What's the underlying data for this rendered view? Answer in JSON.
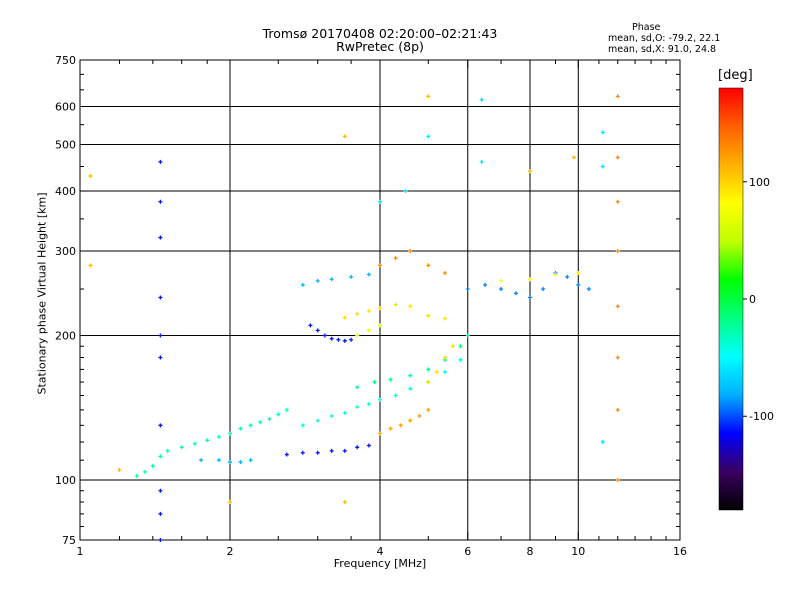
{
  "chart_data": {
    "type": "scatter",
    "title": "Tromsø 20170408 02:20:00–02:21:43",
    "subtitle": "RwPretec (8p)",
    "xlabel": "Frequency [MHz]",
    "ylabel": "Stationary phase Virtual Height [km]",
    "x_scale": "log",
    "y_scale": "log",
    "xlim": [
      1,
      16
    ],
    "ylim": [
      75,
      750
    ],
    "x_ticks": [
      1,
      2,
      4,
      6,
      8,
      10,
      16
    ],
    "y_ticks": [
      75,
      100,
      200,
      300,
      400,
      500,
      600,
      750
    ],
    "x_major_grid": [
      2,
      4,
      6,
      8,
      10
    ],
    "y_major_grid": [
      100,
      200,
      300,
      400,
      500,
      600
    ],
    "phase_box": {
      "title": "Phase",
      "o_line": "mean, sd,O: -79.2, 22.1",
      "x_line": "mean, sd,X:  91.0, 24.8"
    },
    "colorbar": {
      "unit": "[deg]",
      "range": [
        -180,
        180
      ],
      "ticks": [
        100,
        0,
        -100
      ],
      "colors": [
        "#000000",
        "#3a0060",
        "#0000ff",
        "#00b0ff",
        "#00ffff",
        "#00ff80",
        "#00ff00",
        "#c0ff00",
        "#ffff00",
        "#ffb000",
        "#ff6000",
        "#ff0000"
      ]
    },
    "series": [
      {
        "values": [
          [
            1.3,
            102
          ],
          [
            1.35,
            104
          ],
          [
            1.4,
            107
          ],
          [
            1.45,
            112
          ],
          [
            1.5,
            115
          ],
          [
            1.6,
            117
          ],
          [
            1.7,
            119
          ],
          [
            1.8,
            121
          ],
          [
            1.9,
            123
          ],
          [
            2.0,
            125
          ],
          [
            2.1,
            128
          ],
          [
            2.2,
            130
          ],
          [
            2.3,
            132
          ],
          [
            2.4,
            134
          ],
          [
            2.5,
            137
          ],
          [
            2.6,
            140
          ]
        ],
        "color_phase": -30
      },
      {
        "values": [
          [
            2.6,
            113
          ],
          [
            2.8,
            114
          ],
          [
            3.0,
            114
          ],
          [
            3.2,
            115
          ],
          [
            3.4,
            115
          ],
          [
            3.6,
            117
          ],
          [
            3.8,
            118
          ]
        ],
        "color_phase": -110
      },
      {
        "values": [
          [
            1.75,
            110
          ],
          [
            1.9,
            110
          ],
          [
            2.0,
            109
          ],
          [
            2.1,
            109
          ],
          [
            2.2,
            110
          ]
        ],
        "color_phase": -80
      },
      {
        "values": [
          [
            2.8,
            130
          ],
          [
            3.0,
            133
          ],
          [
            3.2,
            136
          ],
          [
            3.4,
            138
          ],
          [
            3.6,
            142
          ],
          [
            3.8,
            144
          ],
          [
            4.0,
            147
          ],
          [
            4.3,
            150
          ],
          [
            4.6,
            155
          ],
          [
            5.0,
            160
          ],
          [
            5.4,
            168
          ],
          [
            5.8,
            178
          ]
        ],
        "color_phase": -40
      },
      {
        "values": [
          [
            3.6,
            156
          ],
          [
            3.9,
            160
          ],
          [
            4.2,
            162
          ],
          [
            4.6,
            165
          ],
          [
            5.0,
            170
          ],
          [
            5.4,
            178
          ],
          [
            5.8,
            190
          ],
          [
            6.0,
            200
          ]
        ],
        "color_phase": -20
      },
      {
        "values": [
          [
            2.9,
            210
          ],
          [
            3.0,
            205
          ],
          [
            3.1,
            200
          ],
          [
            3.2,
            197
          ],
          [
            3.3,
            196
          ],
          [
            3.4,
            195
          ],
          [
            3.5,
            196
          ]
        ],
        "color_phase": -110
      },
      {
        "values": [
          [
            2.8,
            255
          ],
          [
            3.0,
            260
          ],
          [
            3.2,
            262
          ],
          [
            3.5,
            265
          ],
          [
            3.8,
            268
          ]
        ],
        "color_phase": -80
      },
      {
        "values": [
          [
            3.4,
            218
          ],
          [
            3.6,
            222
          ],
          [
            3.8,
            225
          ],
          [
            4.0,
            228
          ],
          [
            4.3,
            232
          ],
          [
            4.6,
            230
          ],
          [
            5.0,
            220
          ],
          [
            5.4,
            217
          ]
        ],
        "color_phase": 95
      },
      {
        "values": [
          [
            3.6,
            200
          ],
          [
            3.8,
            205
          ],
          [
            4.0,
            210
          ]
        ],
        "color_phase": 70
      },
      {
        "values": [
          [
            4.0,
            125
          ],
          [
            4.2,
            128
          ],
          [
            4.4,
            130
          ],
          [
            4.6,
            133
          ],
          [
            4.8,
            136
          ],
          [
            5.0,
            140
          ]
        ],
        "color_phase": 120
      },
      {
        "values": [
          [
            5.0,
            160
          ],
          [
            5.2,
            168
          ],
          [
            5.4,
            180
          ],
          [
            5.6,
            190
          ]
        ],
        "color_phase": 95
      },
      {
        "values": [
          [
            4.0,
            280
          ],
          [
            4.3,
            290
          ],
          [
            4.6,
            300
          ],
          [
            5.0,
            280
          ],
          [
            5.4,
            270
          ]
        ],
        "color_phase": 130
      },
      {
        "values": [
          [
            6.0,
            250
          ],
          [
            6.5,
            255
          ],
          [
            7.0,
            250
          ],
          [
            7.5,
            245
          ],
          [
            8.0,
            240
          ],
          [
            8.5,
            250
          ],
          [
            9.0,
            270
          ],
          [
            9.5,
            265
          ],
          [
            10.0,
            255
          ],
          [
            10.5,
            250
          ]
        ],
        "color_phase": -90
      },
      {
        "values": [
          [
            7.0,
            260
          ],
          [
            8.0,
            262
          ],
          [
            9.0,
            268
          ],
          [
            10.0,
            270
          ]
        ],
        "color_phase": 80
      },
      {
        "values": [
          [
            1.45,
            75
          ],
          [
            1.45,
            85
          ],
          [
            1.45,
            95
          ],
          [
            1.45,
            130
          ],
          [
            1.45,
            180
          ],
          [
            1.45,
            200
          ],
          [
            1.45,
            240
          ],
          [
            1.45,
            320
          ],
          [
            1.45,
            380
          ],
          [
            1.45,
            460
          ]
        ],
        "color_phase": -110
      },
      {
        "values": [
          [
            12.0,
            100
          ],
          [
            12.0,
            140
          ],
          [
            12.0,
            180
          ],
          [
            12.0,
            230
          ],
          [
            12.0,
            300
          ],
          [
            12.0,
            380
          ],
          [
            12.0,
            470
          ],
          [
            12.0,
            630
          ]
        ],
        "color_phase": 130
      },
      {
        "values": [
          [
            11.2,
            120
          ],
          [
            11.2,
            450
          ],
          [
            11.2,
            530
          ],
          [
            6.4,
            620
          ],
          [
            6.4,
            460
          ],
          [
            5.0,
            520
          ],
          [
            4.5,
            400
          ],
          [
            4.0,
            380
          ]
        ],
        "color_phase": -60
      },
      {
        "values": [
          [
            1.05,
            430
          ],
          [
            1.05,
            280
          ],
          [
            2.0,
            90
          ],
          [
            3.4,
            90
          ],
          [
            5.0,
            630
          ],
          [
            3.4,
            520
          ],
          [
            9.8,
            470
          ],
          [
            8.0,
            440
          ],
          [
            1.2,
            105
          ]
        ],
        "color_phase": 110
      }
    ]
  }
}
